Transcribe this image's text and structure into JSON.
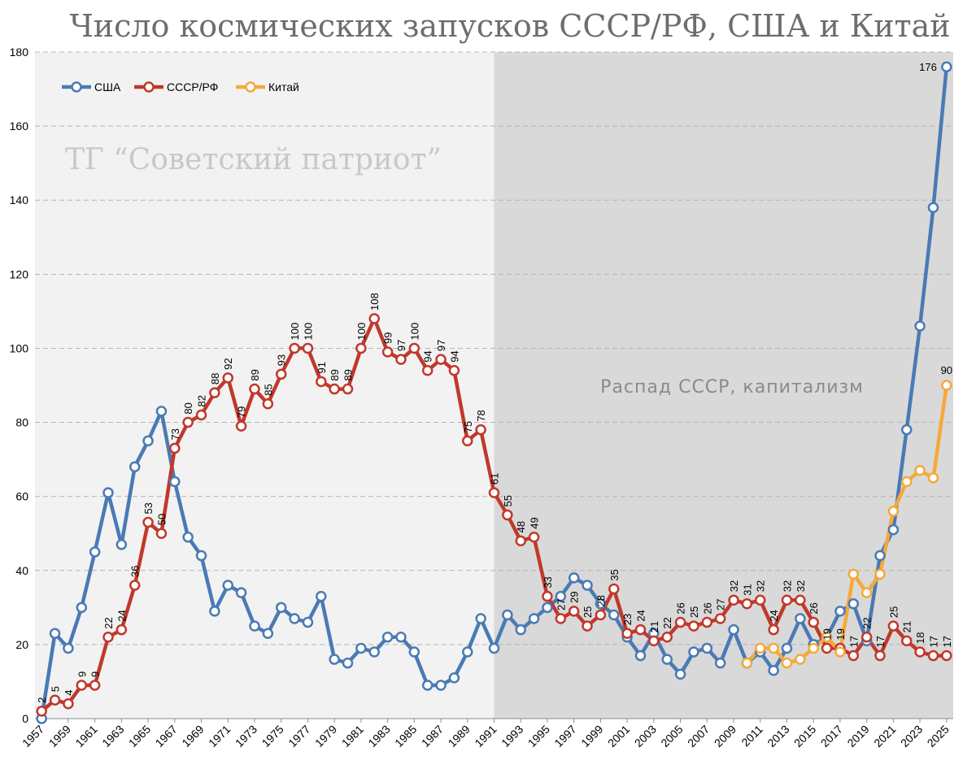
{
  "chart_data": {
    "type": "line",
    "title": "Число космических запусков СССР/РФ, США и Китай",
    "watermark": "ТГ “Советский патриот”",
    "annotation": "Распад СССР, капитализм",
    "ylim": [
      0,
      180
    ],
    "yticks": [
      0,
      20,
      40,
      60,
      80,
      100,
      120,
      140,
      160,
      180
    ],
    "grid": "horizontal dashed",
    "legend_position": "top-left",
    "x_labels": [
      "1957",
      "1959",
      "1961",
      "1963",
      "1965",
      "1967",
      "1969",
      "1971",
      "1973",
      "1975",
      "1977",
      "1979",
      "1981",
      "1983",
      "1985",
      "1987",
      "1989",
      "1991",
      "1993",
      "1995",
      "1997",
      "1999",
      "2001",
      "2003",
      "2005",
      "2007",
      "2009",
      "2011",
      "2013",
      "2015",
      "2017",
      "2019",
      "2021",
      "2023",
      "2025"
    ],
    "shaded_region": {
      "from": 1991,
      "to": 2025.5,
      "label": "Распад СССР, капитализм"
    },
    "series": [
      {
        "name": "США",
        "color": "#4a7ab5",
        "x": [
          1957,
          1958,
          1959,
          1960,
          1961,
          1962,
          1963,
          1964,
          1965,
          1966,
          1967,
          1968,
          1969,
          1970,
          1971,
          1972,
          1973,
          1974,
          1975,
          1976,
          1977,
          1978,
          1979,
          1980,
          1981,
          1982,
          1983,
          1984,
          1985,
          1986,
          1987,
          1988,
          1989,
          1990,
          1991,
          1992,
          1993,
          1994,
          1995,
          1996,
          1997,
          1998,
          1999,
          2000,
          2001,
          2002,
          2003,
          2004,
          2005,
          2006,
          2007,
          2008,
          2009,
          2010,
          2011,
          2012,
          2013,
          2014,
          2015,
          2016,
          2017,
          2018,
          2019,
          2020,
          2021,
          2022,
          2023,
          2024,
          2025
        ],
        "values": [
          0,
          23,
          19,
          30,
          45,
          61,
          47,
          68,
          75,
          83,
          64,
          49,
          44,
          29,
          36,
          34,
          25,
          23,
          30,
          27,
          26,
          33,
          16,
          15,
          19,
          18,
          22,
          22,
          18,
          9,
          9,
          11,
          18,
          27,
          19,
          28,
          24,
          27,
          30,
          33,
          38,
          36,
          31,
          28,
          22,
          17,
          23,
          16,
          12,
          18,
          19,
          15,
          24,
          15,
          18,
          13,
          19,
          27,
          20,
          22,
          29,
          31,
          21,
          44,
          51,
          78,
          106,
          138,
          176
        ],
        "labels": {
          "2025": "176"
        }
      },
      {
        "name": "СССР/РФ",
        "color": "#c0392b",
        "x": [
          1957,
          1958,
          1959,
          1960,
          1961,
          1962,
          1963,
          1964,
          1965,
          1966,
          1967,
          1968,
          1969,
          1970,
          1971,
          1972,
          1973,
          1974,
          1975,
          1976,
          1977,
          1978,
          1979,
          1980,
          1981,
          1982,
          1983,
          1984,
          1985,
          1986,
          1987,
          1988,
          1989,
          1990,
          1991,
          1992,
          1993,
          1994,
          1995,
          1996,
          1997,
          1998,
          1999,
          2000,
          2001,
          2002,
          2003,
          2004,
          2005,
          2006,
          2007,
          2008,
          2009,
          2010,
          2011,
          2012,
          2013,
          2014,
          2015,
          2016,
          2017,
          2018,
          2019,
          2020,
          2021,
          2022,
          2023,
          2024,
          2025
        ],
        "values": [
          2,
          5,
          4,
          9,
          9,
          22,
          24,
          36,
          53,
          50,
          73,
          80,
          82,
          88,
          92,
          79,
          89,
          85,
          93,
          100,
          100,
          91,
          89,
          89,
          100,
          108,
          99,
          97,
          100,
          94,
          97,
          94,
          75,
          78,
          61,
          55,
          48,
          49,
          33,
          27,
          29,
          25,
          28,
          35,
          23,
          24,
          21,
          22,
          26,
          25,
          26,
          27,
          32,
          31,
          32,
          24,
          32,
          32,
          26,
          19,
          19,
          17,
          22,
          17,
          25,
          21,
          18,
          17,
          17
        ],
        "labels": {
          "1957": "2",
          "1958": "5",
          "1959": "4",
          "1960": "9",
          "1961": "9",
          "1962": "22",
          "1963": "24",
          "1964": "36",
          "1965": "53",
          "1966": "50",
          "1967": "73",
          "1968": "80",
          "1969": "82",
          "1970": "88",
          "1971": "92",
          "1972": "79",
          "1973": "89",
          "1974": "85",
          "1975": "93",
          "1976": "100",
          "1977": "100",
          "1978": "91",
          "1979": "89",
          "1980": "89",
          "1981": "100",
          "1982": "108",
          "1983": "99",
          "1984": "97",
          "1985": "100",
          "1986": "94",
          "1987": "97",
          "1988": "94",
          "1989": "75",
          "1990": "78",
          "1991": "61",
          "1992": "55",
          "1993": "48",
          "1994": "49",
          "1995": "33",
          "1996": "27",
          "1997": "29",
          "1998": "25",
          "1999": "28",
          "2000": "35",
          "2001": "23",
          "2002": "24",
          "2003": "21",
          "2004": "22",
          "2005": "26",
          "2006": "25",
          "2007": "26",
          "2008": "27",
          "2009": "32",
          "2010": "31",
          "2011": "32",
          "2012": "24",
          "2013": "32",
          "2014": "32",
          "2015": "26",
          "2016": "19",
          "2017": "19",
          "2018": "17",
          "2019": "22",
          "2020": "17",
          "2021": "25",
          "2022": "21",
          "2023": "18",
          "2024": "17",
          "2025": "17"
        }
      },
      {
        "name": "Китай",
        "color": "#f5a93a",
        "x": [
          2010,
          2011,
          2012,
          2013,
          2014,
          2015,
          2016,
          2017,
          2018,
          2019,
          2020,
          2021,
          2022,
          2023,
          2024,
          2025
        ],
        "values": [
          15,
          19,
          19,
          15,
          16,
          19,
          22,
          18,
          39,
          34,
          39,
          56,
          64,
          67,
          65,
          90
        ],
        "labels": {
          "2025": "90"
        }
      }
    ]
  }
}
